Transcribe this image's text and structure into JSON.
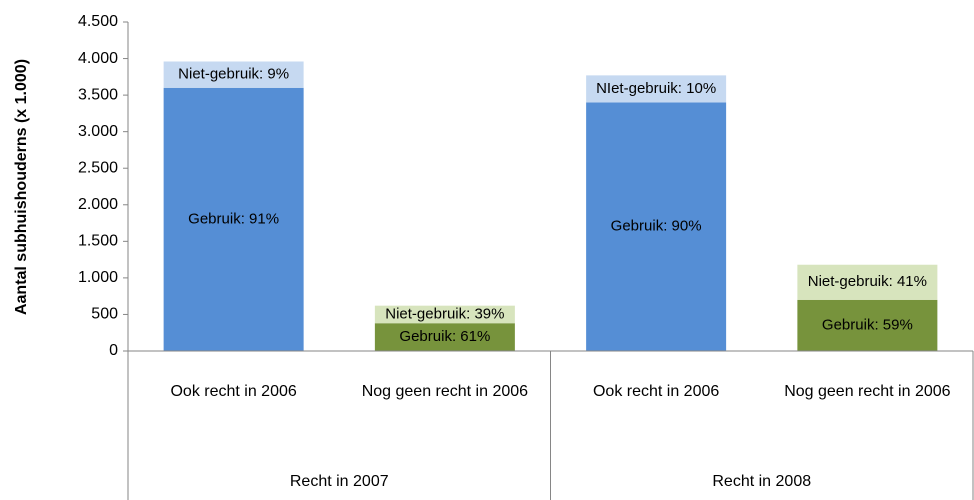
{
  "chart_data": {
    "type": "stacked_bar",
    "y_label": "Aantal subhuishouderns (x 1.000)",
    "categories": [
      "Ook recht in 2006",
      "Nog geen recht in 2006",
      "Ook recht in 2006",
      "Nog geen recht in 2006"
    ],
    "groups": [
      "Recht in 2007",
      "Recht in 2008"
    ],
    "series": [
      {
        "colors": [
          "#558ed5",
          "#77933c",
          "#558ed5",
          "#77933c"
        ],
        "values": [
          3600,
          380,
          3400,
          700
        ],
        "labels": [
          "Gebruik: 91%",
          "Gebruik: 61%",
          "Gebruik: 90%",
          "Gebruik: 59%"
        ]
      },
      {
        "colors": [
          "#c6d9f1",
          "#d7e4bd",
          "#c6d9f1",
          "#d7e4bd"
        ],
        "values": [
          360,
          240,
          370,
          480
        ],
        "labels": [
          "Niet-gebruik: 9%",
          "Niet-gebruik: 39%",
          "NIet-gebruik: 10%",
          "Niet-gebruik: 41%"
        ]
      }
    ],
    "ylim": [
      0,
      4500
    ],
    "yticks": [
      0,
      500,
      {
        "value": 1000,
        "label": "1.000"
      },
      {
        "value": 1500,
        "label": "1.500"
      },
      {
        "value": 2000,
        "label": "2.000"
      },
      {
        "value": 2500,
        "label": "2.500"
      },
      {
        "value": 3000,
        "label": "3.000"
      },
      {
        "value": 3500,
        "label": "3.500"
      },
      {
        "value": 4000,
        "label": "4.000"
      },
      {
        "value": 4500,
        "label": "4.500"
      }
    ],
    "grid": false
  }
}
